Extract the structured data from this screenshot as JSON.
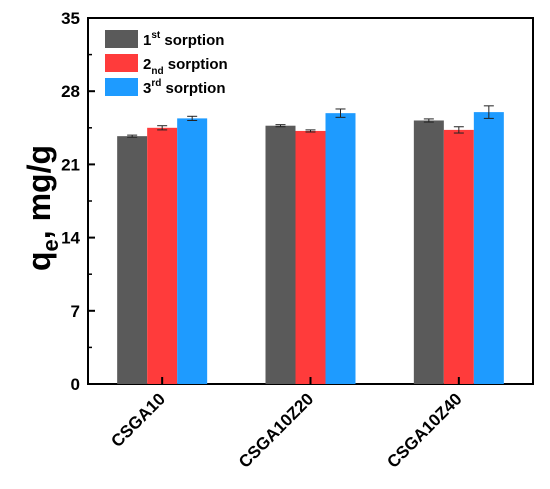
{
  "chart_data": {
    "type": "bar",
    "categories": [
      "CSGA10",
      "CSGA10Z20",
      "CSGA10Z40"
    ],
    "series": [
      {
        "name_main": "1",
        "name_sup": "st",
        "name_sub": "",
        "name_rest": " sorption",
        "color": "#5a5a5a",
        "values": [
          23.7,
          24.7,
          25.2
        ],
        "errors": [
          0.1,
          0.1,
          0.15
        ]
      },
      {
        "name_main": "2",
        "name_sup": "",
        "name_sub": "nd",
        "name_rest": " sorption",
        "color": "#ff3b3b",
        "values": [
          24.5,
          24.2,
          24.3
        ],
        "errors": [
          0.2,
          0.1,
          0.3
        ]
      },
      {
        "name_main": "3",
        "name_sup": "rd",
        "name_sub": "",
        "name_rest": " sorption",
        "color": "#1e9bff",
        "values": [
          25.4,
          25.9,
          26.0
        ],
        "errors": [
          0.2,
          0.4,
          0.6
        ]
      }
    ],
    "ylabel_main": "q",
    "ylabel_sub": "e",
    "ylabel_rest": ", mg/g",
    "ylim": [
      0,
      35
    ],
    "yticks": [
      "0",
      "7",
      "14",
      "21",
      "28",
      "35"
    ],
    "grid": false,
    "legend": "top-left"
  }
}
